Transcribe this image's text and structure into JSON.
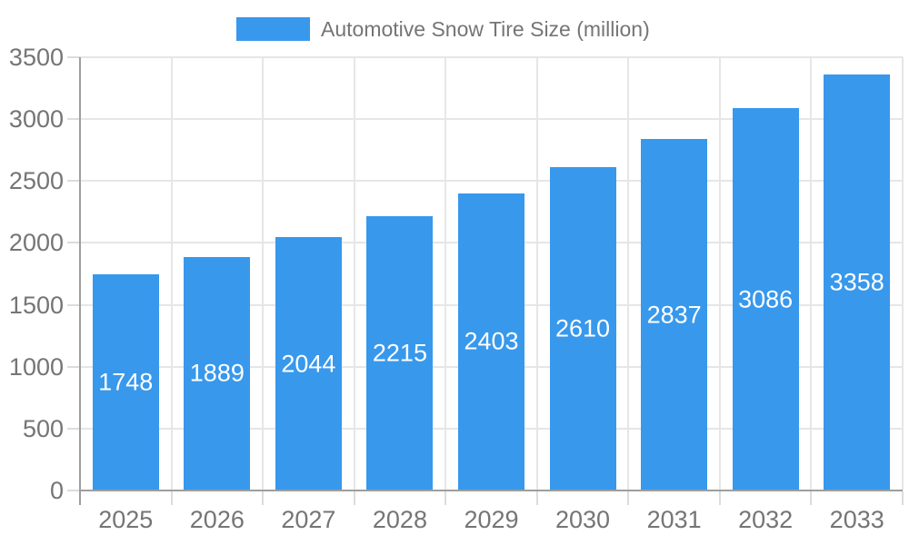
{
  "legend": {
    "label": "Automotive Snow Tire Size (million)"
  },
  "colors": {
    "bar": "#3898EC",
    "axis": "#9E9E9E",
    "grid": "#E6E6E6",
    "tick": "#DCDCDC",
    "axis_label": "#757575",
    "value_label": "#FFFFFF",
    "background": "#FFFFFF"
  },
  "chart_data": {
    "type": "bar",
    "title": "Automotive Snow Tire Size (million)",
    "categories": [
      "2025",
      "2026",
      "2027",
      "2028",
      "2029",
      "2030",
      "2031",
      "2032",
      "2033"
    ],
    "values": [
      1748,
      1889,
      2044,
      2215,
      2403,
      2610,
      2837,
      3086,
      3358
    ],
    "value_labels": [
      "1748",
      "1889",
      "2044",
      "2215",
      "2403",
      "2610",
      "2837",
      "3086",
      "3358"
    ],
    "xlabel": "",
    "ylabel": "",
    "ylim": [
      0,
      3500
    ],
    "yticks": [
      0,
      500,
      1000,
      1500,
      2000,
      2500,
      3000,
      3500
    ],
    "grid": true,
    "legend_position": "top-center",
    "value_label_style": "centered-inside-white"
  }
}
